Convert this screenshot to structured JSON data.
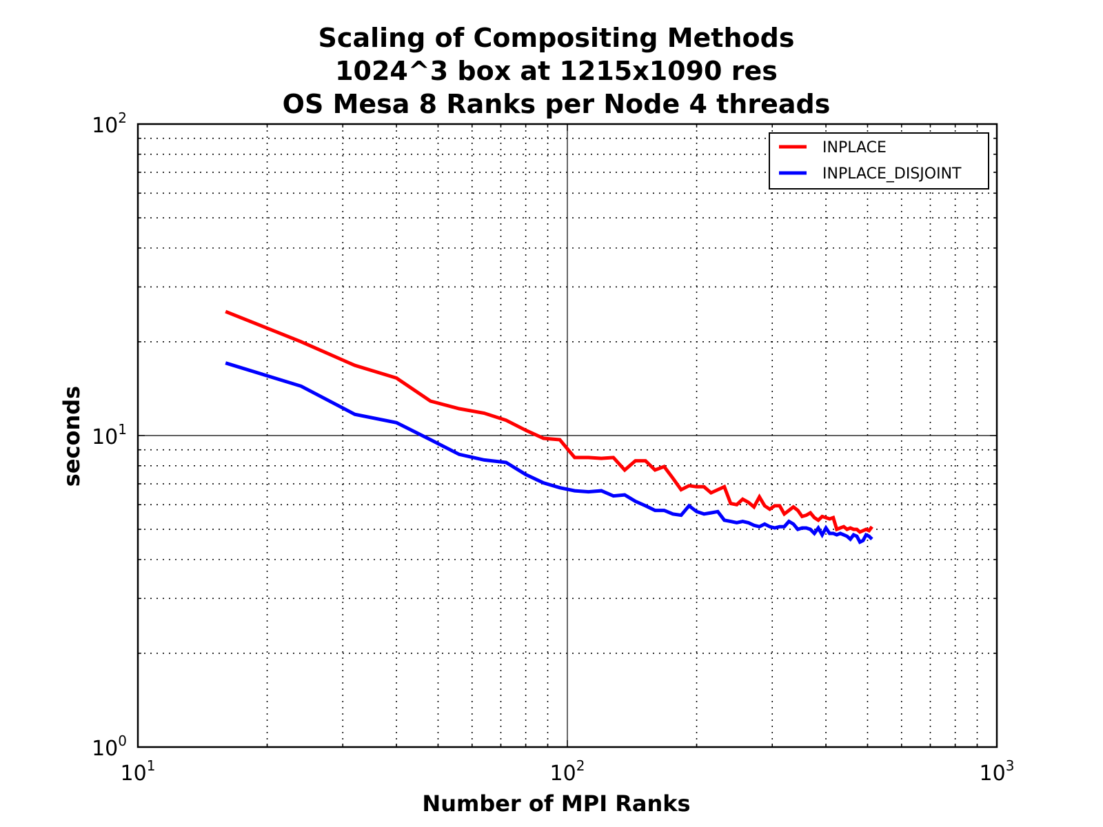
{
  "chart_data": {
    "type": "line",
    "title_lines": [
      "Scaling of Compositing Methods",
      "1024^3 box at 1215x1090 res",
      "OS Mesa 8 Ranks per Node 4 threads"
    ],
    "xlabel": "Number of MPI Ranks",
    "ylabel": "seconds",
    "x_scale": "log",
    "y_scale": "log",
    "xlim": [
      10,
      1000
    ],
    "ylim": [
      1,
      100
    ],
    "x_ticks": [
      {
        "base": "10",
        "exp": "1"
      },
      {
        "base": "10",
        "exp": "2"
      },
      {
        "base": "10",
        "exp": "3"
      }
    ],
    "y_ticks": [
      {
        "base": "10",
        "exp": "0"
      },
      {
        "base": "10",
        "exp": "1"
      },
      {
        "base": "10",
        "exp": "2"
      }
    ],
    "grid": true,
    "legend_position": "top-right",
    "series": [
      {
        "name": "INPLACE",
        "color": "#ff0000",
        "x": [
          16,
          24,
          32,
          40,
          48,
          56,
          64,
          72,
          80,
          88,
          96,
          104,
          112,
          120,
          128,
          136,
          144,
          152,
          160,
          168,
          176,
          184,
          192,
          200,
          208,
          216,
          224,
          232,
          240,
          248,
          256,
          264,
          272,
          280,
          288,
          296,
          304,
          312,
          320,
          328,
          336,
          344,
          352,
          360,
          368,
          376,
          384,
          392,
          400,
          408,
          416,
          424,
          432,
          440,
          448,
          456,
          464,
          472,
          480,
          488,
          496,
          504,
          512
        ],
        "y": [
          25,
          20,
          16.8,
          15.3,
          12.9,
          12.2,
          11.8,
          11.2,
          10.4,
          9.8,
          9.7,
          8.5,
          8.5,
          8.45,
          8.5,
          7.75,
          8.3,
          8.3,
          7.75,
          7.95,
          7.3,
          6.7,
          6.9,
          6.85,
          6.85,
          6.55,
          6.7,
          6.85,
          6.05,
          6.0,
          6.25,
          6.1,
          5.9,
          6.35,
          5.95,
          5.8,
          5.95,
          5.95,
          5.6,
          5.75,
          5.9,
          5.75,
          5.5,
          5.55,
          5.65,
          5.45,
          5.35,
          5.5,
          5.45,
          5.4,
          5.45,
          5.0,
          5.05,
          5.1,
          5.0,
          5.05,
          5.0,
          5.0,
          4.9,
          4.95,
          5.0,
          4.95,
          5.1
        ]
      },
      {
        "name": "INPLACE_DISJOINT",
        "color": "#0000ff",
        "x": [
          16,
          24,
          32,
          40,
          48,
          56,
          64,
          72,
          80,
          88,
          96,
          104,
          112,
          120,
          128,
          136,
          144,
          152,
          160,
          168,
          176,
          184,
          192,
          200,
          208,
          216,
          224,
          232,
          240,
          248,
          256,
          264,
          272,
          280,
          288,
          296,
          304,
          312,
          320,
          328,
          336,
          344,
          352,
          360,
          368,
          376,
          384,
          392,
          400,
          408,
          416,
          424,
          432,
          440,
          448,
          456,
          464,
          472,
          480,
          488,
          496,
          504,
          512
        ],
        "y": [
          17.1,
          14.4,
          11.7,
          11.0,
          9.7,
          8.7,
          8.35,
          8.2,
          7.5,
          7.05,
          6.8,
          6.65,
          6.6,
          6.65,
          6.4,
          6.45,
          6.15,
          5.95,
          5.75,
          5.75,
          5.6,
          5.55,
          5.95,
          5.7,
          5.6,
          5.65,
          5.7,
          5.35,
          5.3,
          5.25,
          5.3,
          5.25,
          5.15,
          5.1,
          5.2,
          5.1,
          5.05,
          5.1,
          5.1,
          5.3,
          5.2,
          5.0,
          5.05,
          5.05,
          5.0,
          4.85,
          5.05,
          4.8,
          5.05,
          4.85,
          4.85,
          4.8,
          4.85,
          4.8,
          4.75,
          4.65,
          4.8,
          4.75,
          4.55,
          4.6,
          4.8,
          4.75,
          4.65
        ]
      }
    ]
  }
}
